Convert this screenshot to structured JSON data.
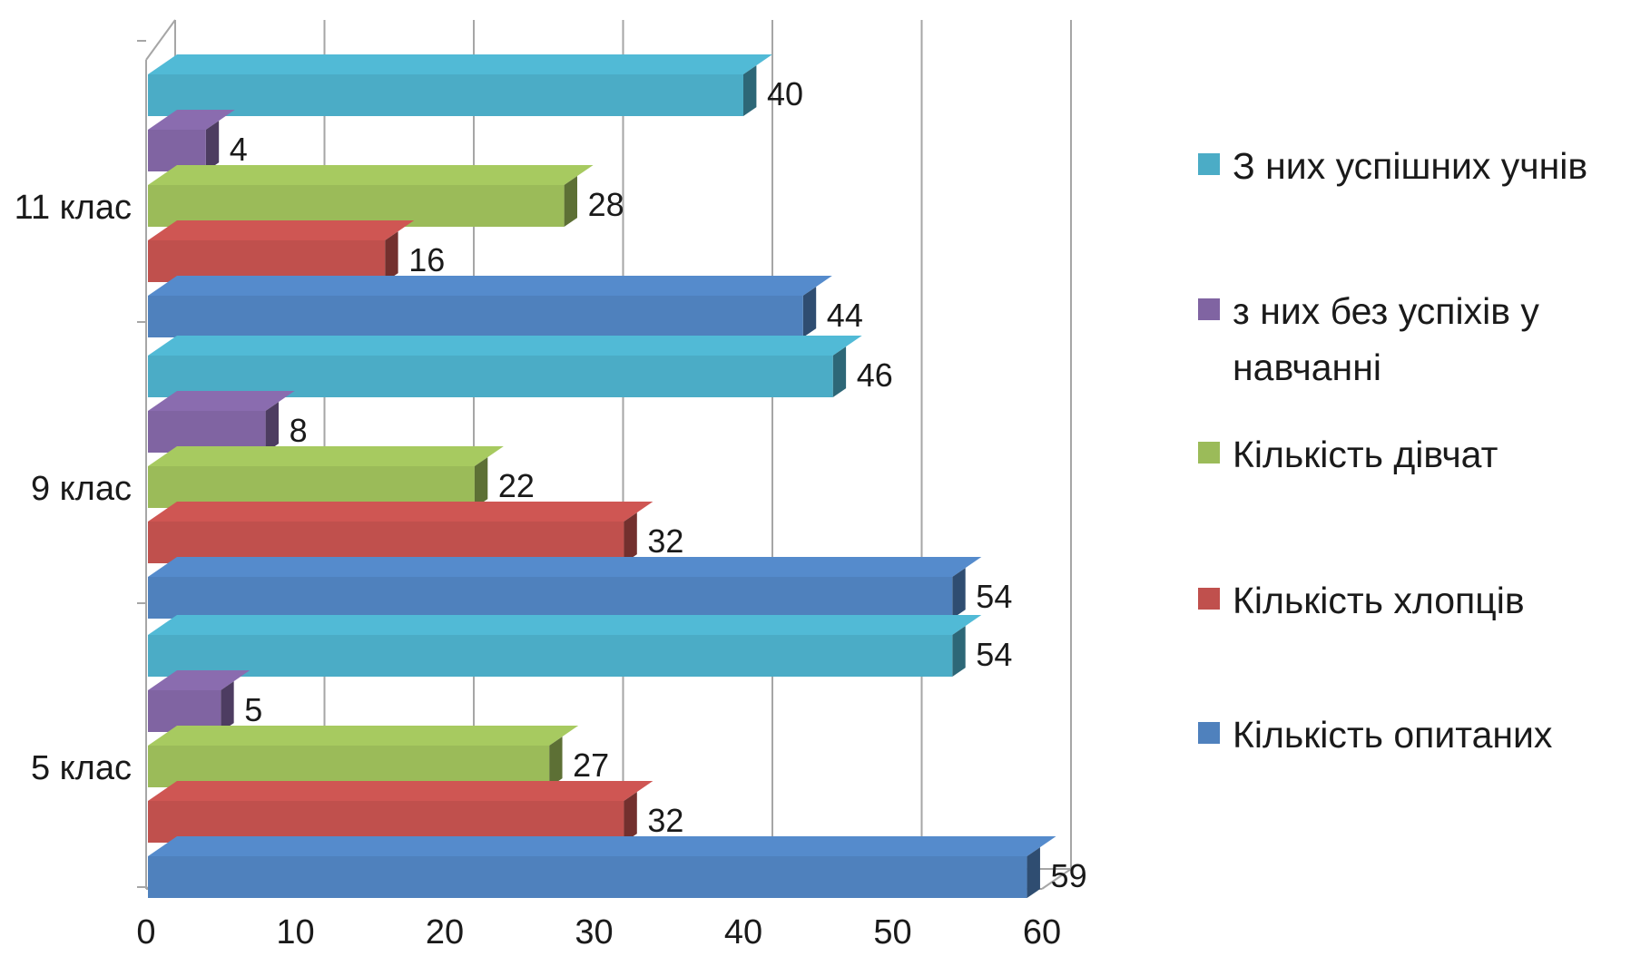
{
  "chart_data": {
    "type": "bar",
    "orientation": "horizontal",
    "three_d": true,
    "categories": [
      "11 клас",
      "9 клас",
      "5 клас"
    ],
    "series": [
      {
        "name": "З них успішних учнів",
        "color": "#4bacc6",
        "values": [
          40,
          46,
          54
        ]
      },
      {
        "name": "з них без успіхів у навчанні",
        "color": "#8064a2",
        "values": [
          4,
          8,
          5
        ]
      },
      {
        "name": "Кількість дівчат",
        "color": "#9bbb59",
        "values": [
          28,
          22,
          27
        ]
      },
      {
        "name": "Кількість хлопців",
        "color": "#c0504d",
        "values": [
          16,
          32,
          32
        ]
      },
      {
        "name": "Кількість опитаних",
        "color": "#4f81bd",
        "values": [
          44,
          54,
          59
        ]
      }
    ],
    "x_ticks": [
      "0",
      "10",
      "20",
      "30",
      "40",
      "50",
      "60"
    ],
    "xlim": [
      0,
      60
    ],
    "grid": true,
    "legend_position": "right",
    "title": "",
    "xlabel": "",
    "ylabel": ""
  }
}
